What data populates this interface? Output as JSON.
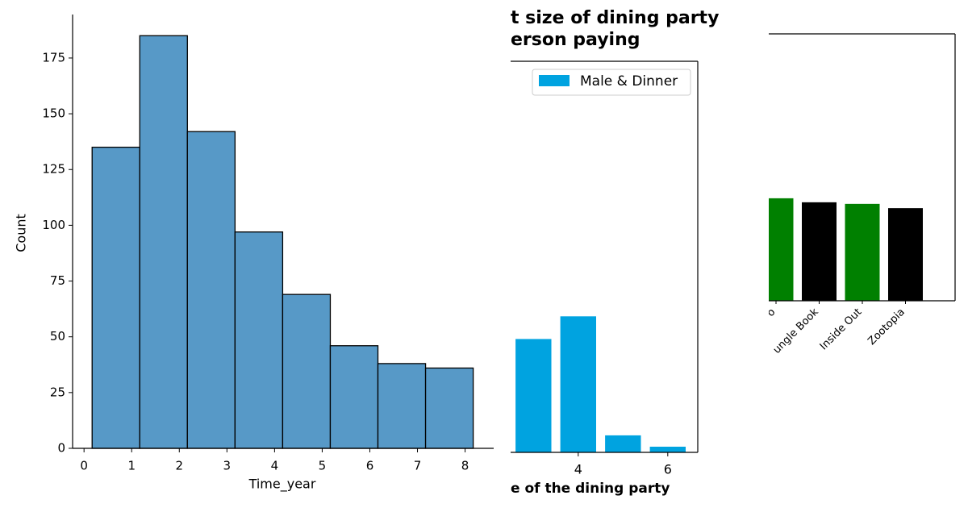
{
  "chart_data": [
    {
      "type": "histogram",
      "xlabel": "Time_year",
      "ylabel": "Count",
      "bins": [
        0.17,
        1.17,
        2.17,
        3.17,
        4.17,
        5.17,
        6.17,
        7.17,
        8.17
      ],
      "values": [
        135,
        185,
        142,
        97,
        69,
        46,
        38,
        36
      ],
      "color": "#5799c7",
      "edgecolor": "#000000",
      "xlim": [
        -0.24,
        8.6
      ],
      "ylim": [
        0,
        194.5
      ],
      "xticks": [
        0,
        1,
        2,
        3,
        4,
        5,
        6,
        7,
        8
      ],
      "yticks": [
        0,
        25,
        50,
        75,
        100,
        125,
        150,
        175
      ]
    },
    {
      "type": "bar",
      "title_lines": [
        "t size of dining party",
        "erson paying"
      ],
      "xlabel": "e of the dining party",
      "x": [
        3,
        4,
        5,
        6
      ],
      "series": [
        {
          "name": "Male & Dinner",
          "color": "#00a3e0",
          "values": [
            20,
            24,
            3,
            1
          ]
        }
      ],
      "xlim": [
        2.49,
        6.67
      ],
      "ylim": [
        0,
        69
      ],
      "xticks": [
        4,
        6
      ],
      "legend": "upper right"
    },
    {
      "type": "colorbar",
      "categories": [
        "o",
        "ungle Book",
        "Inside Out",
        "Zootopia"
      ],
      "values": [
        38.4,
        36.9,
        36.3,
        34.7
      ],
      "colors": [
        "#008000",
        "#000000",
        "#008000",
        "#000000"
      ],
      "ylim": [
        0,
        100
      ]
    }
  ]
}
